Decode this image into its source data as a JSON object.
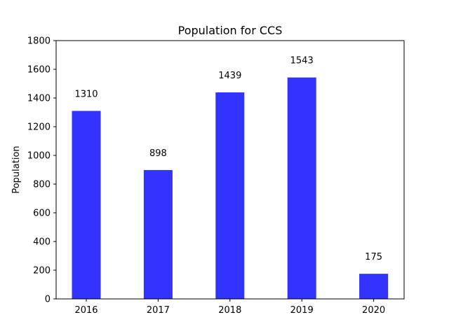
{
  "chart_data": {
    "type": "bar",
    "title": "Population for CCS",
    "xlabel": "",
    "ylabel": "Population",
    "categories": [
      "2016",
      "2017",
      "2018",
      "2019",
      "2020"
    ],
    "values": [
      1310,
      898,
      1439,
      1543,
      175
    ],
    "data_labels": [
      "1310",
      "898",
      "1439",
      "1543",
      "175"
    ],
    "ylim": [
      0,
      1800
    ],
    "yticks": [
      0,
      200,
      400,
      600,
      800,
      1000,
      1200,
      1400,
      1600,
      1800
    ],
    "bar_color": "#3333ff",
    "grid": false,
    "legend": "none"
  }
}
